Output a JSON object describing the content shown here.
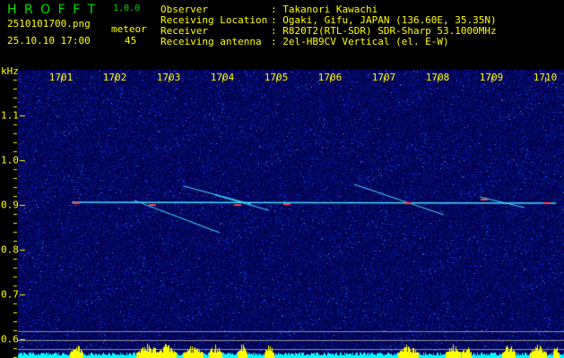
{
  "app": {
    "name": "H R O F F T",
    "version": "1.0.0"
  },
  "file": {
    "filename": "2510101700.png",
    "datetime": "25.10.10 17:00"
  },
  "counter": {
    "label": "meteor",
    "value": "45"
  },
  "info": [
    {
      "label": "Observer",
      "value": ": Takanori Kawachi"
    },
    {
      "label": "Receiving Location",
      "value": ": Ogaki, Gifu, JAPAN (136.60E, 35.35N)"
    },
    {
      "label": "Receiver",
      "value": ": R820T2(RTL-SDR) SDR-Sharp 53.1000MHz"
    },
    {
      "label": "Receiving antenna",
      "value": ": 2el-HB9CV Vertical (el. E-W)"
    }
  ],
  "chart_data": {
    "type": "heatmap",
    "ylabel": "kHz",
    "x_ticks": [
      "1701",
      "1702",
      "1703",
      "1704",
      "1705",
      "1706",
      "1707",
      "1708",
      "1709",
      "1710"
    ],
    "y_ticks": [
      "1.1",
      "1.0",
      "0.9",
      "0.8",
      "0.7",
      "0.6"
    ],
    "ylim": [
      0.56,
      1.2
    ],
    "xlim": [
      1700.2,
      1710.35
    ],
    "colors": {
      "background": "#000080",
      "noise": "#1030ff",
      "trace": "#40e0ff",
      "strong": "#ff4040",
      "text": "#ffff00",
      "title": "#00dd00",
      "bottom_level": "#00ffff",
      "bottom_peak": "#ffff00"
    }
  }
}
